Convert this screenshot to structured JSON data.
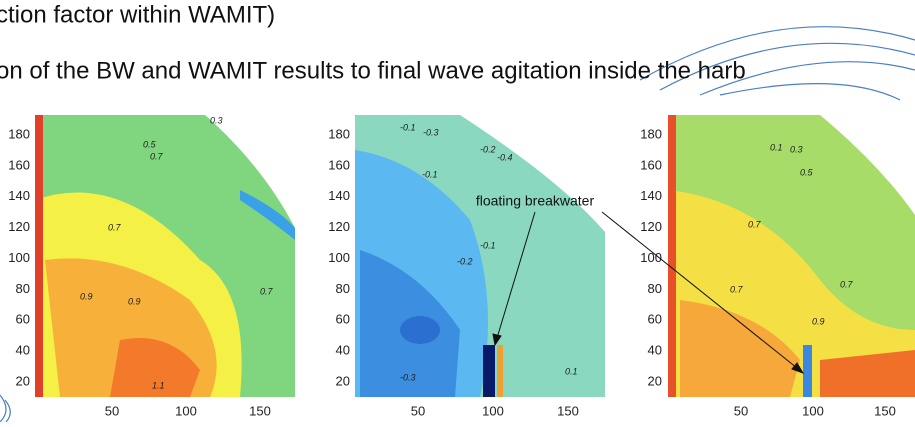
{
  "slide": {
    "lines": [
      "ction factor within WAMIT)",
      "on of the BW and WAMIT results to final wave agitation inside the harb"
    ],
    "annotation": "floating breakwater",
    "plots": [
      {
        "yticks": [
          180,
          160,
          140,
          120,
          100,
          80,
          60,
          40,
          20
        ],
        "xticks": [
          50,
          100,
          150
        ],
        "contour_labels": [
          "0.3",
          "0.5",
          "0.7",
          "0.7",
          "0.9",
          "0.9",
          "1.1",
          "0.7"
        ]
      },
      {
        "yticks": [
          180,
          160,
          140,
          120,
          100,
          80,
          60,
          40,
          20
        ],
        "xticks": [
          50,
          100,
          150
        ],
        "contour_labels": [
          "-0.1",
          "-0.3",
          "-0.2",
          "-0.4",
          "-0.1",
          "-0.2",
          "-0.1",
          "-0.3",
          "0.1"
        ]
      },
      {
        "yticks": [
          180,
          160,
          140,
          120,
          100,
          80,
          60,
          40,
          20
        ],
        "xticks": [
          50,
          100,
          150
        ],
        "contour_labels": [
          "0.1",
          "0.3",
          "0.5",
          "0.7",
          "0.7",
          "0.9",
          "0.7"
        ]
      }
    ]
  }
}
